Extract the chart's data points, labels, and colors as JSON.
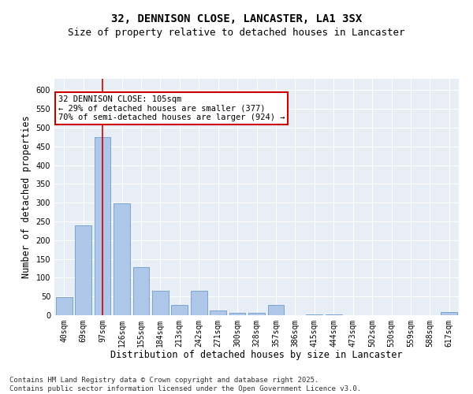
{
  "title_line1": "32, DENNISON CLOSE, LANCASTER, LA1 3SX",
  "title_line2": "Size of property relative to detached houses in Lancaster",
  "xlabel": "Distribution of detached houses by size in Lancaster",
  "ylabel": "Number of detached properties",
  "categories": [
    "40sqm",
    "69sqm",
    "97sqm",
    "126sqm",
    "155sqm",
    "184sqm",
    "213sqm",
    "242sqm",
    "271sqm",
    "300sqm",
    "328sqm",
    "357sqm",
    "386sqm",
    "415sqm",
    "444sqm",
    "473sqm",
    "502sqm",
    "530sqm",
    "559sqm",
    "588sqm",
    "617sqm"
  ],
  "values": [
    48,
    240,
    475,
    298,
    128,
    65,
    28,
    65,
    13,
    7,
    6,
    27,
    0,
    2,
    2,
    0,
    0,
    0,
    0,
    0,
    8
  ],
  "bar_color": "#aec6e8",
  "bar_edge_color": "#5a8fc2",
  "vline_x": 2,
  "vline_color": "#cc0000",
  "annotation_text": "32 DENNISON CLOSE: 105sqm\n← 29% of detached houses are smaller (377)\n70% of semi-detached houses are larger (924) →",
  "annotation_box_color": "#ffffff",
  "annotation_box_edge_color": "#cc0000",
  "ylim": [
    0,
    630
  ],
  "yticks": [
    0,
    50,
    100,
    150,
    200,
    250,
    300,
    350,
    400,
    450,
    500,
    550,
    600
  ],
  "background_color": "#e8eef5",
  "footer_text": "Contains HM Land Registry data © Crown copyright and database right 2025.\nContains public sector information licensed under the Open Government Licence v3.0.",
  "title_fontsize": 10,
  "subtitle_fontsize": 9,
  "xlabel_fontsize": 8.5,
  "ylabel_fontsize": 8.5,
  "tick_fontsize": 7,
  "annotation_fontsize": 7.5,
  "footer_fontsize": 6.5
}
